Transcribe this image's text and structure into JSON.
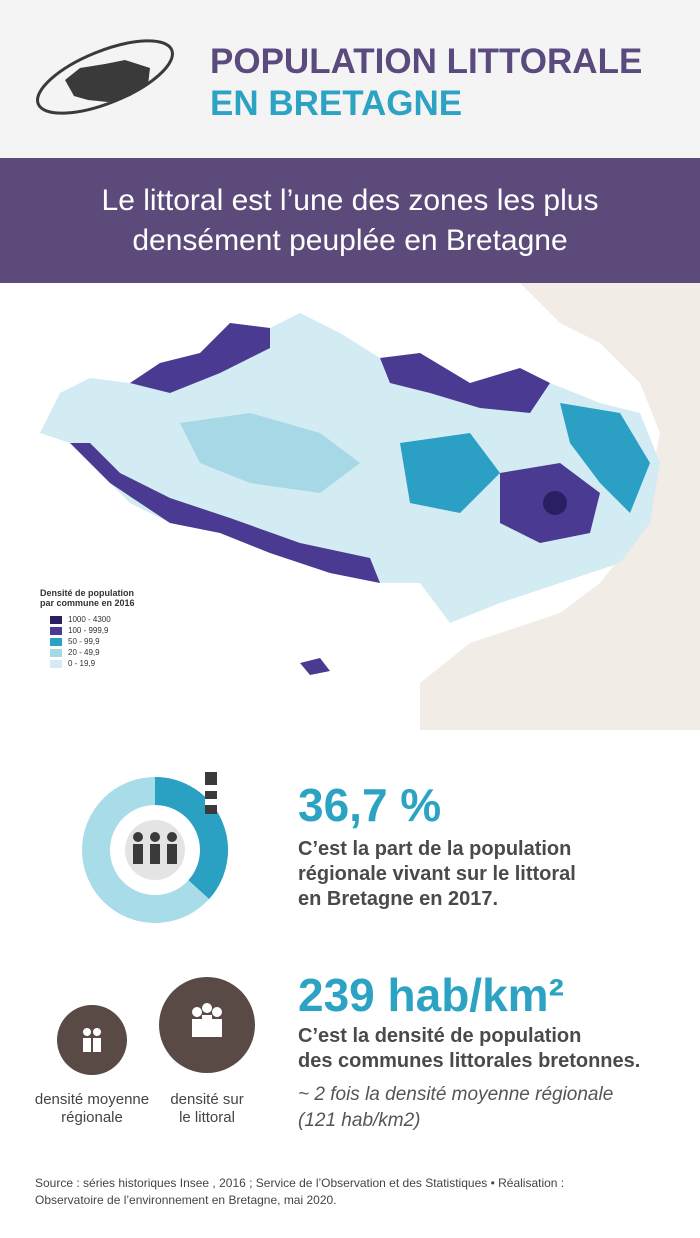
{
  "header": {
    "title_line1": "POPULATION LITTORALE",
    "title_line2": "EN BRETAGNE"
  },
  "subtitle": [
    "Le littoral est l’une des zones les plus",
    "densément peuplée en Bretagne"
  ],
  "legend": {
    "title": [
      "Densité de population",
      "par commune en 2016"
    ],
    "items": [
      {
        "label": "1000 - 4300",
        "color": "#2b1f63"
      },
      {
        "label": "100 - 999,9",
        "color": "#4a3a92"
      },
      {
        "label": "50 - 99,9",
        "color": "#2c9fc4"
      },
      {
        "label": "20 - 49,9",
        "color": "#a6d8e6"
      },
      {
        "label": "0 - 19,9",
        "color": "#d3ebf2"
      }
    ]
  },
  "stat1": {
    "donut": {
      "value": 36.7,
      "label": "36,7 %"
    },
    "text": [
      "C’est la part de la population",
      "régionale vivant sur le littoral",
      "en Bretagne en 2017."
    ]
  },
  "stat2": {
    "value": "239 hab/km²",
    "text": [
      "C’est la densité de population",
      "des communes littorales bretonnes."
    ],
    "note": [
      "~ 2 fois la densité moyenne régionale",
      "(121 hab/km2)"
    ],
    "circles": [
      [
        "densité moyenne",
        "régionale"
      ],
      [
        "densité sur",
        "le littoral"
      ]
    ]
  },
  "source": [
    "Source : séries historiques Insee , 2016  ; Service de l’Observation et des Statistiques • Réalisation :",
    "Observatoire de l’environnement en Bretagne, mai 2020."
  ]
}
